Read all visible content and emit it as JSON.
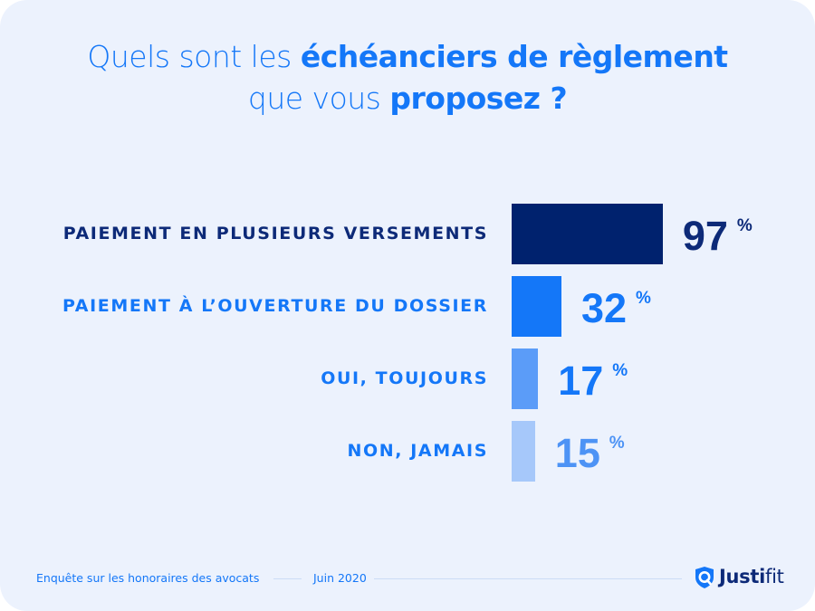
{
  "title": {
    "line1_regular": "Quels sont les ",
    "line1_bold": "échéanciers de règlement",
    "line2_regular": "que vous ",
    "line2_bold": "proposez ?"
  },
  "colors": {
    "background": "#ecf2fd",
    "title": "#1477f8",
    "navy": "#00226e",
    "blue": "#1477f8",
    "mid_blue": "#5b9cf8",
    "light_blue": "#a6c8fa"
  },
  "chart_data": {
    "type": "bar",
    "orientation": "horizontal",
    "title": "Quels sont les échéanciers de règlement que vous proposez ?",
    "categories": [
      "PAIEMENT EN PLUSIEURS VERSEMENTS",
      "PAIEMENT À L’OUVERTURE DU DOSSIER",
      "OUI, TOUJOURS",
      "NON, JAMAIS"
    ],
    "values": [
      97,
      32,
      17,
      15
    ],
    "unit": "%",
    "xlim": [
      0,
      100
    ],
    "grid": false,
    "legend": "none",
    "bar_colors": [
      "#00226e",
      "#1477f8",
      "#5b9cf8",
      "#a6c8fa"
    ],
    "label_colors": [
      "#0d2a78",
      "#1477f8",
      "#1477f8",
      "#1477f8"
    ],
    "value_colors": [
      "#0d2a78",
      "#1477f8",
      "#1477f8",
      "#4d93f5"
    ]
  },
  "footer": {
    "survey": "Enquête sur les honoraires des avocats",
    "date": "Juin 2020",
    "brand_bold": "Justi",
    "brand_light": "fit",
    "logo_icon": "shield-search-icon"
  }
}
